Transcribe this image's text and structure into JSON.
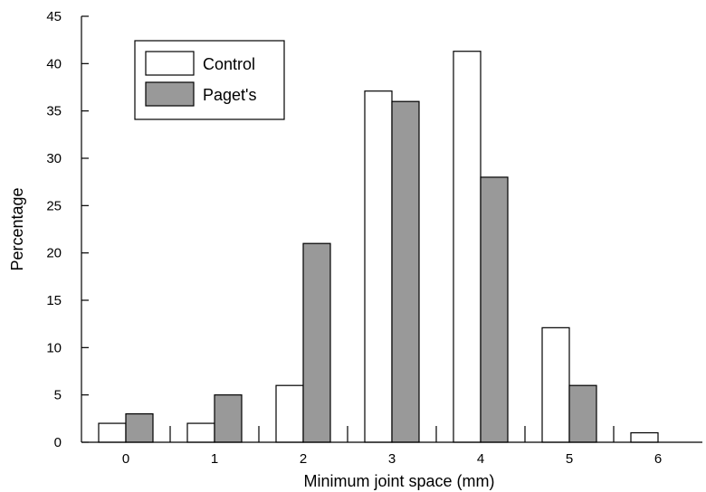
{
  "chart_data": {
    "type": "bar",
    "xlabel": "Minimum joint space (mm)",
    "ylabel": "Percentage",
    "categories": [
      "0",
      "1",
      "2",
      "3",
      "4",
      "5",
      "6"
    ],
    "ylim": [
      0,
      45
    ],
    "yticks": [
      0,
      5,
      10,
      15,
      20,
      25,
      30,
      35,
      40,
      45
    ],
    "grid": false,
    "legend_position": "top-left",
    "series": [
      {
        "name": "Control",
        "color": "#ffffff",
        "values": [
          2,
          2,
          6,
          37.1,
          41.3,
          12.1,
          1
        ]
      },
      {
        "name": "Paget's",
        "color": "#999999",
        "values": [
          3,
          5,
          21,
          36,
          28,
          6,
          0
        ]
      }
    ]
  }
}
